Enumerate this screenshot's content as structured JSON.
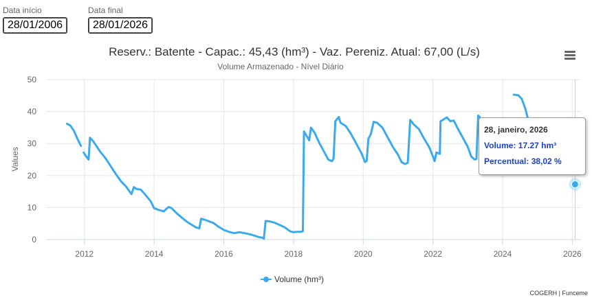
{
  "filters": {
    "start_label": "Data início",
    "start_value": "28/01/2006",
    "end_label": "Data final",
    "end_value": "28/01/2026"
  },
  "menu_icon": "hamburger-menu-icon",
  "credits": "COGERH | Funceme",
  "tooltip": {
    "date": "28, janeiro, 2026",
    "volume": "Volume: 17.27 hm³",
    "percent": "Percentual: 38,02 %",
    "color": "#1a3fd1"
  },
  "chart_data": {
    "type": "line",
    "title": "Reserv.: Batente - Capac.: 45,43 (hm³) - Vaz. Pereniz. Atual: 67,00 (L/s)",
    "subtitle": "Volume Armazenado - Nível Diário",
    "ylabel": "Values",
    "xlabel": "",
    "xlim": [
      2010.9,
      2026.25
    ],
    "ylim": [
      0,
      50
    ],
    "yticks": [
      0,
      10,
      20,
      30,
      40,
      50
    ],
    "xticks": [
      2012,
      2014,
      2016,
      2018,
      2020,
      2022,
      2024,
      2026
    ],
    "grid": true,
    "legend_position": "bottom-center",
    "series": [
      {
        "name": "Volume (hm³)",
        "color": "#3aaaee",
        "segments": [
          [
            [
              2011.5,
              36.2
            ],
            [
              2011.6,
              35.6
            ],
            [
              2011.7,
              34.0
            ],
            [
              2011.8,
              31.5
            ],
            [
              2011.9,
              29.3
            ]
          ],
          [
            [
              2011.98,
              27.2
            ],
            [
              2012.05,
              26.0
            ],
            [
              2012.12,
              25.0
            ],
            [
              2012.16,
              31.8
            ],
            [
              2012.25,
              30.8
            ],
            [
              2012.45,
              27.5
            ],
            [
              2012.6,
              25.5
            ],
            [
              2012.75,
              23.0
            ],
            [
              2012.9,
              20.5
            ],
            [
              2013.05,
              18.2
            ],
            [
              2013.2,
              16.5
            ],
            [
              2013.3,
              15.0
            ],
            [
              2013.35,
              14.2
            ],
            [
              2013.42,
              16.4
            ],
            [
              2013.5,
              15.8
            ],
            [
              2013.62,
              15.6
            ],
            [
              2013.75,
              14.0
            ],
            [
              2013.9,
              12.0
            ],
            [
              2014.0,
              9.8
            ],
            [
              2014.15,
              9.2
            ],
            [
              2014.28,
              8.8
            ],
            [
              2014.35,
              9.6
            ],
            [
              2014.42,
              10.2
            ],
            [
              2014.5,
              9.8
            ],
            [
              2014.65,
              8.2
            ],
            [
              2014.8,
              6.8
            ],
            [
              2014.95,
              5.5
            ],
            [
              2015.05,
              4.8
            ],
            [
              2015.2,
              3.8
            ],
            [
              2015.3,
              3.5
            ],
            [
              2015.35,
              6.5
            ],
            [
              2015.45,
              6.2
            ],
            [
              2015.55,
              5.8
            ],
            [
              2015.7,
              5.2
            ],
            [
              2015.85,
              4.0
            ],
            [
              2016.0,
              3.0
            ],
            [
              2016.15,
              2.4
            ],
            [
              2016.3,
              2.0
            ],
            [
              2016.45,
              2.3
            ],
            [
              2016.6,
              2.0
            ],
            [
              2016.8,
              1.5
            ],
            [
              2017.0,
              0.8
            ],
            [
              2017.1,
              0.6
            ],
            [
              2017.15,
              0.3
            ],
            [
              2017.2,
              5.8
            ],
            [
              2017.3,
              5.7
            ],
            [
              2017.45,
              5.3
            ],
            [
              2017.6,
              4.6
            ],
            [
              2017.75,
              3.8
            ],
            [
              2017.9,
              2.6
            ],
            [
              2018.0,
              2.3
            ],
            [
              2018.1,
              2.4
            ],
            [
              2018.2,
              2.4
            ],
            [
              2018.27,
              2.6
            ],
            [
              2018.3,
              33.8
            ],
            [
              2018.4,
              32.0
            ],
            [
              2018.45,
              31.0
            ],
            [
              2018.5,
              35.0
            ],
            [
              2018.6,
              33.5
            ],
            [
              2018.75,
              30.0
            ],
            [
              2018.9,
              27.0
            ],
            [
              2019.0,
              25.0
            ],
            [
              2019.1,
              24.5
            ],
            [
              2019.15,
              25.2
            ],
            [
              2019.2,
              37.0
            ],
            [
              2019.3,
              38.3
            ],
            [
              2019.35,
              36.5
            ],
            [
              2019.5,
              35.5
            ],
            [
              2019.65,
              33.0
            ],
            [
              2019.8,
              30.0
            ],
            [
              2019.95,
              27.0
            ],
            [
              2020.05,
              24.2
            ],
            [
              2020.1,
              24.6
            ],
            [
              2020.15,
              31.5
            ],
            [
              2020.22,
              33.0
            ],
            [
              2020.3,
              36.8
            ],
            [
              2020.4,
              36.5
            ],
            [
              2020.55,
              35.0
            ],
            [
              2020.7,
              32.0
            ],
            [
              2020.85,
              29.0
            ],
            [
              2021.0,
              26.5
            ],
            [
              2021.1,
              24.2
            ],
            [
              2021.2,
              23.6
            ],
            [
              2021.28,
              24.0
            ],
            [
              2021.35,
              37.4
            ],
            [
              2021.45,
              36.0
            ],
            [
              2021.6,
              34.5
            ],
            [
              2021.75,
              31.5
            ],
            [
              2021.9,
              28.8
            ],
            [
              2022.0,
              26.0
            ],
            [
              2022.05,
              24.5
            ],
            [
              2022.1,
              27.2
            ],
            [
              2022.2,
              26.8
            ],
            [
              2022.22,
              37.0
            ],
            [
              2022.3,
              37.5
            ],
            [
              2022.4,
              38.2
            ],
            [
              2022.5,
              37.0
            ],
            [
              2022.6,
              37.2
            ],
            [
              2022.7,
              35.0
            ],
            [
              2022.85,
              32.0
            ],
            [
              2023.0,
              29.0
            ],
            [
              2023.1,
              26.0
            ],
            [
              2023.2,
              25.0
            ],
            [
              2023.25,
              25.2
            ],
            [
              2023.3,
              38.8
            ],
            [
              2023.35,
              38.2
            ]
          ],
          [
            [
              2024.32,
              45.3
            ],
            [
              2024.45,
              45.1
            ],
            [
              2024.55,
              44.0
            ],
            [
              2024.65,
              41.0
            ],
            [
              2024.72,
              38.0
            ]
          ],
          [
            [
              2026.08,
              17.27
            ]
          ]
        ]
      }
    ],
    "highlight": {
      "x": 2026.08,
      "y": 17.27
    }
  }
}
